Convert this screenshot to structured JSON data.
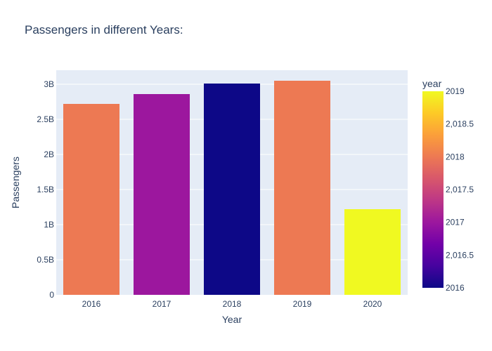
{
  "chart_data": {
    "type": "bar",
    "title": "Passengers in different Years:",
    "xlabel": "Year",
    "ylabel": "Passengers",
    "categories": [
      "2016",
      "2017",
      "2018",
      "2019",
      "2020"
    ],
    "values": [
      2720000000,
      2860000000,
      3010000000,
      3050000000,
      1220000000
    ],
    "color_values": [
      2018,
      2017,
      2016,
      2018,
      2019
    ],
    "ylim": [
      0,
      3200000000
    ],
    "yticks": [
      0,
      500000000,
      1000000000,
      1500000000,
      2000000000,
      2500000000,
      3000000000
    ],
    "ytick_labels": [
      "0",
      "0.5B",
      "1B",
      "1.5B",
      "2B",
      "2.5B",
      "3B"
    ],
    "grid": true,
    "colorbar": {
      "title": "year",
      "range": [
        2016,
        2019
      ],
      "tick_values": [
        2016,
        2016.5,
        2017,
        2017.5,
        2018,
        2018.5,
        2019
      ],
      "tick_labels": [
        "2016",
        "2,016.5",
        "2017",
        "2,017.5",
        "2018",
        "2,018.5",
        "2019"
      ],
      "colorscale": [
        "#0d0887",
        "#46039f",
        "#7201a8",
        "#9c179e",
        "#bd3786",
        "#d8576b",
        "#ed7953",
        "#fb9f3a",
        "#fdca26",
        "#f0f921"
      ]
    },
    "plot_background": "#e5ecf6"
  }
}
